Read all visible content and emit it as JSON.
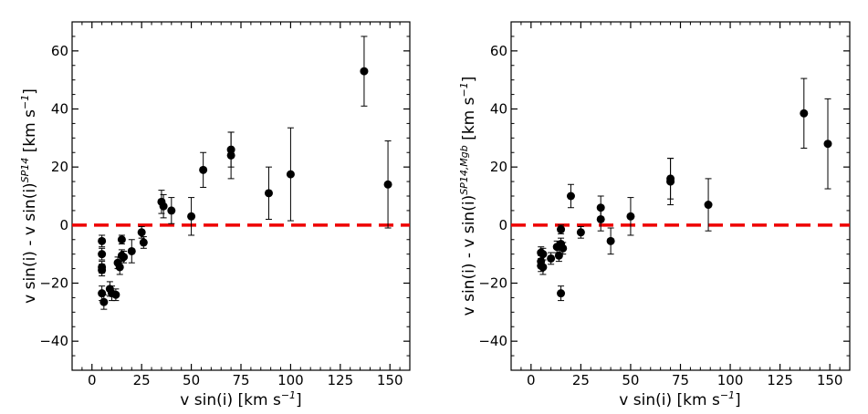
{
  "chart_data": [
    {
      "type": "scatter",
      "xlabel": "v sin(i)",
      "xlabel_unit": "[km s",
      "xlabel_unit_exp": "−1",
      "xlabel_unit_end": "]",
      "ylabel_main": "v sin(i) - v sin(i)",
      "ylabel_sup": "SP14",
      "ylabel_unit": "[km s",
      "ylabel_unit_exp": "−1",
      "ylabel_unit_end": "]",
      "xlim": [
        -10,
        160
      ],
      "ylim": [
        -50,
        70
      ],
      "xticks": [
        0,
        25,
        50,
        75,
        100,
        125,
        150
      ],
      "yticks": [
        -40,
        -20,
        0,
        20,
        40,
        60
      ],
      "reference_line": {
        "y": 0,
        "color": "#ee0000",
        "style": "dashed"
      },
      "marker_color": "#000000",
      "points": [
        {
          "x": 5,
          "y": -5.5,
          "err": 2
        },
        {
          "x": 5,
          "y": -10,
          "err": 2
        },
        {
          "x": 5,
          "y": -14.5,
          "err": 2
        },
        {
          "x": 5,
          "y": -15.5,
          "err": 2
        },
        {
          "x": 5,
          "y": -23.5,
          "err": 2.5
        },
        {
          "x": 6,
          "y": -26.5,
          "err": 2.5
        },
        {
          "x": 9,
          "y": -22,
          "err": 2.5
        },
        {
          "x": 10,
          "y": -23.5,
          "err": 2.5
        },
        {
          "x": 12,
          "y": -24,
          "err": 2
        },
        {
          "x": 13,
          "y": -13,
          "err": 2
        },
        {
          "x": 14,
          "y": -14.5,
          "err": 2.5
        },
        {
          "x": 15,
          "y": -5,
          "err": 1.5
        },
        {
          "x": 15,
          "y": -10.5,
          "err": 2
        },
        {
          "x": 16,
          "y": -11,
          "err": 2
        },
        {
          "x": 20,
          "y": -9,
          "err": 4
        },
        {
          "x": 25,
          "y": -2.5,
          "err": 2
        },
        {
          "x": 26,
          "y": -6,
          "err": 2
        },
        {
          "x": 35,
          "y": 8,
          "err": 4
        },
        {
          "x": 36,
          "y": 6.5,
          "err": 4
        },
        {
          "x": 40,
          "y": 5,
          "err": 4.5
        },
        {
          "x": 50,
          "y": 3,
          "err": 6.5
        },
        {
          "x": 56,
          "y": 19,
          "err": 6
        },
        {
          "x": 70,
          "y": 26,
          "err": 6
        },
        {
          "x": 70,
          "y": 24,
          "err": 8
        },
        {
          "x": 89,
          "y": 11,
          "err": 9
        },
        {
          "x": 100,
          "y": 17.5,
          "err": 16
        },
        {
          "x": 137,
          "y": 53,
          "err": 12
        },
        {
          "x": 149,
          "y": 14,
          "err": 15
        }
      ]
    },
    {
      "type": "scatter",
      "xlabel": "v sin(i)",
      "xlabel_unit": "[km s",
      "xlabel_unit_exp": "−1",
      "xlabel_unit_end": "]",
      "ylabel_main": "v sin(i) - v sin(i)",
      "ylabel_sup": "SP14,Mgb",
      "ylabel_unit": "[km s",
      "ylabel_unit_exp": "−1",
      "ylabel_unit_end": "]",
      "xlim": [
        -10,
        160
      ],
      "ylim": [
        -50,
        70
      ],
      "xticks": [
        0,
        25,
        50,
        75,
        100,
        125,
        150
      ],
      "yticks": [
        -40,
        -20,
        0,
        20,
        40,
        60
      ],
      "reference_line": {
        "y": 0,
        "color": "#ee0000",
        "style": "dashed"
      },
      "marker_color": "#000000",
      "points": [
        {
          "x": 5,
          "y": -9.5,
          "err": 2
        },
        {
          "x": 5,
          "y": -12.5,
          "err": 2
        },
        {
          "x": 5,
          "y": -14,
          "err": 2
        },
        {
          "x": 6,
          "y": -14.5,
          "err": 2.5
        },
        {
          "x": 6,
          "y": -10,
          "err": 2
        },
        {
          "x": 10,
          "y": -11.5,
          "err": 2
        },
        {
          "x": 13,
          "y": -7.5,
          "err": 2
        },
        {
          "x": 14,
          "y": -10.5,
          "err": 2
        },
        {
          "x": 15,
          "y": -6.5,
          "err": 2
        },
        {
          "x": 15,
          "y": -1.5,
          "err": 1.5
        },
        {
          "x": 15,
          "y": -23.5,
          "err": 2.5
        },
        {
          "x": 16,
          "y": -8,
          "err": 2
        },
        {
          "x": 20,
          "y": 10,
          "err": 4
        },
        {
          "x": 25,
          "y": -2.5,
          "err": 2
        },
        {
          "x": 35,
          "y": 6,
          "err": 4
        },
        {
          "x": 35,
          "y": 2,
          "err": 4
        },
        {
          "x": 40,
          "y": -5.5,
          "err": 4.5
        },
        {
          "x": 50,
          "y": 3,
          "err": 6.5
        },
        {
          "x": 70,
          "y": 16,
          "err": 7
        },
        {
          "x": 70,
          "y": 15,
          "err": 8
        },
        {
          "x": 89,
          "y": 7,
          "err": 9
        },
        {
          "x": 137,
          "y": 38.5,
          "err": 12
        },
        {
          "x": 149,
          "y": 28,
          "err": 15.5
        }
      ]
    }
  ]
}
